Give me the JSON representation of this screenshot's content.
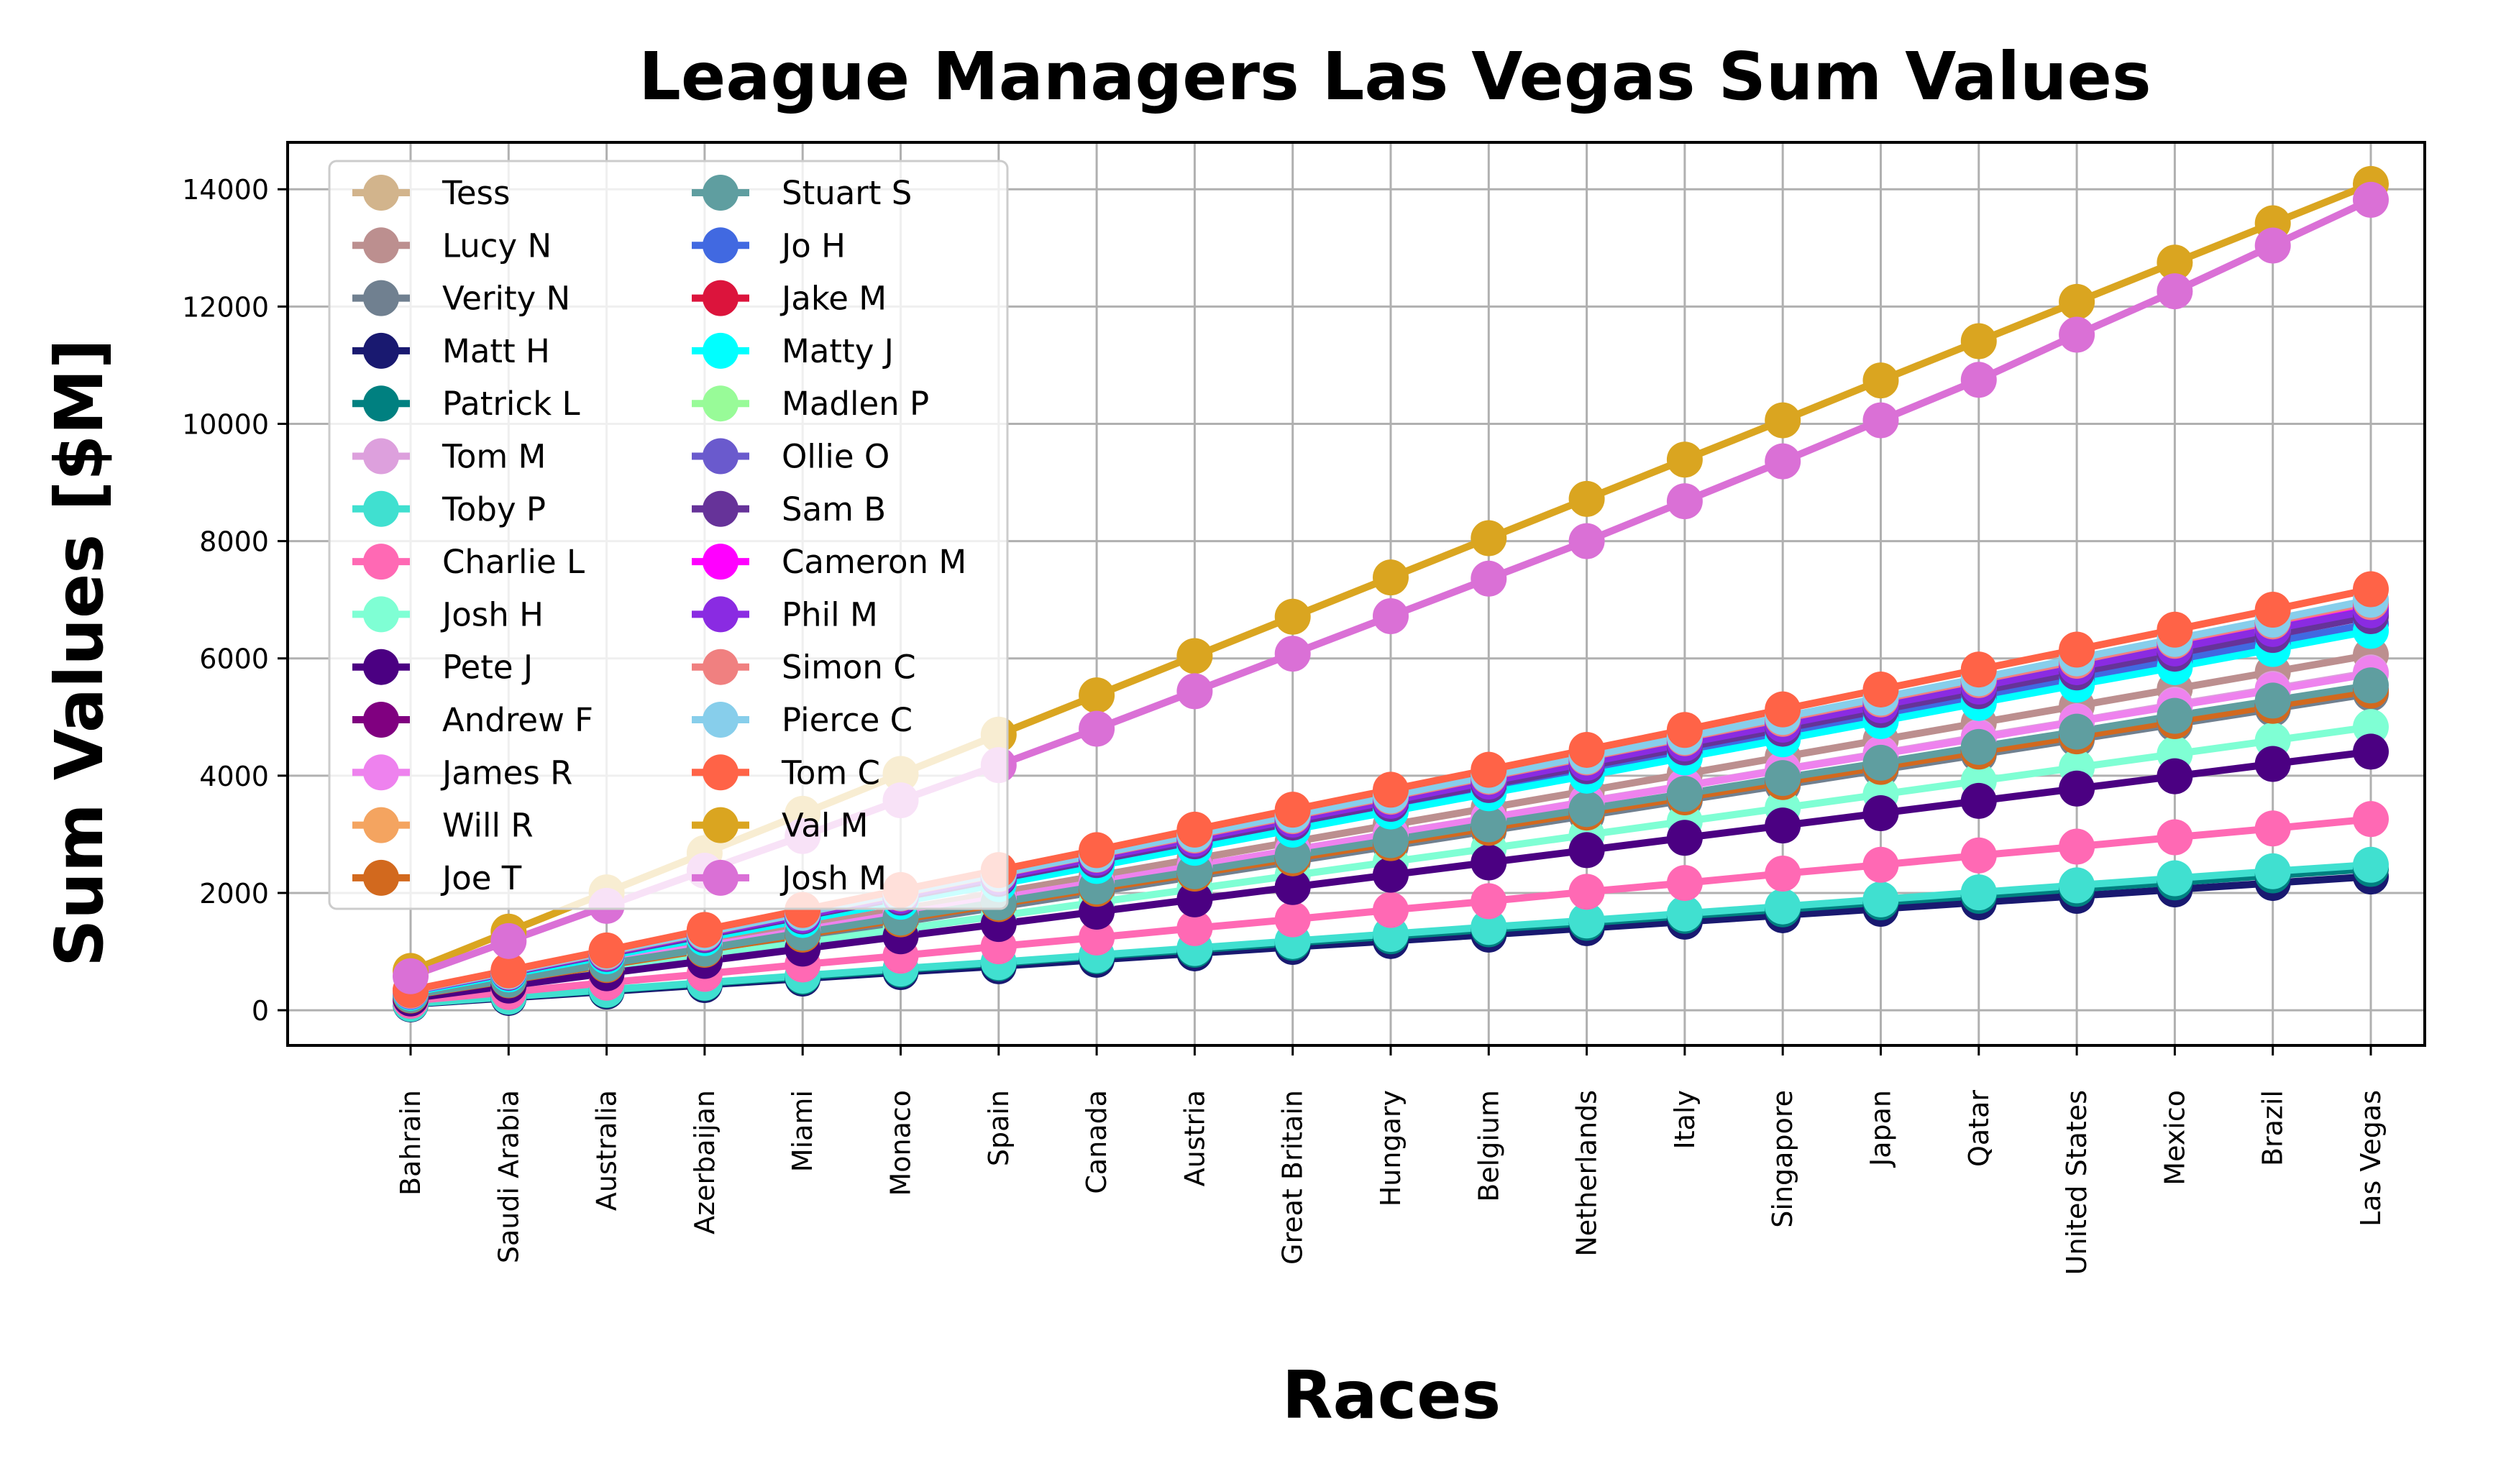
{
  "chart_data": {
    "type": "line",
    "title": "League Managers Las Vegas Sum Values",
    "xlabel": "Races",
    "ylabel": "Sum Values [$M]",
    "ylim": [
      -600,
      14800
    ],
    "yticks": [
      0,
      2000,
      4000,
      6000,
      8000,
      10000,
      12000,
      14000
    ],
    "grid": true,
    "legend_location": "upper-left",
    "legend_columns": 2,
    "categories": [
      "Bahrain",
      "Saudi Arabia",
      "Australia",
      "Azerbaijan",
      "Miami",
      "Monaco",
      "Spain",
      "Canada",
      "Austria",
      "Great Britain",
      "Hungary",
      "Belgium",
      "Netherlands",
      "Italy",
      "Singapore",
      "Japan",
      "Qatar",
      "United States",
      "Mexico",
      "Brazil",
      "Las Vegas"
    ],
    "series": [
      {
        "name": "Tess",
        "color": "#d2b48c",
        "values": [
          310,
          620,
          930,
          1240,
          1560,
          1880,
          2200,
          2520,
          2840,
          3160,
          3480,
          3800,
          4130,
          4460,
          4790,
          5120,
          5450,
          5780,
          6110,
          6440,
          6780
        ]
      },
      {
        "name": "Lucy N",
        "color": "#bc8f8f",
        "values": [
          290,
          570,
          860,
          1140,
          1430,
          1720,
          2000,
          2290,
          2580,
          2870,
          3160,
          3450,
          3740,
          4030,
          4320,
          4610,
          4900,
          5190,
          5480,
          5770,
          6060
        ]
      },
      {
        "name": "Verity N",
        "color": "#708090",
        "values": [
          250,
          500,
          750,
          1000,
          1250,
          1500,
          1760,
          2020,
          2280,
          2540,
          2800,
          3060,
          3320,
          3580,
          3840,
          4100,
          4360,
          4620,
          4880,
          5140,
          5400
        ]
      },
      {
        "name": "Matt H",
        "color": "#191970",
        "values": [
          100,
          210,
          320,
          430,
          540,
          650,
          750,
          860,
          970,
          1080,
          1180,
          1290,
          1400,
          1510,
          1620,
          1730,
          1840,
          1950,
          2060,
          2170,
          2280
        ]
      },
      {
        "name": "Patrick L",
        "color": "#008080",
        "values": [
          110,
          230,
          340,
          460,
          570,
          690,
          800,
          920,
          1030,
          1150,
          1260,
          1380,
          1490,
          1610,
          1720,
          1840,
          1950,
          2070,
          2180,
          2300,
          2410
        ]
      },
      {
        "name": "Tom M",
        "color": "#dda0dd",
        "values": [
          270,
          540,
          820,
          1090,
          1360,
          1640,
          1910,
          2180,
          2460,
          2730,
          3010,
          3280,
          3560,
          3830,
          4110,
          4380,
          4660,
          4930,
          5210,
          5480,
          5760
        ]
      },
      {
        "name": "Toby P",
        "color": "#40e0d0",
        "values": [
          110,
          230,
          350,
          470,
          590,
          710,
          820,
          940,
          1060,
          1180,
          1300,
          1420,
          1530,
          1650,
          1770,
          1890,
          2010,
          2130,
          2250,
          2370,
          2480
        ]
      },
      {
        "name": "Charlie L",
        "color": "#ff69b4",
        "values": [
          160,
          310,
          470,
          620,
          780,
          930,
          1090,
          1240,
          1400,
          1550,
          1710,
          1860,
          2020,
          2170,
          2330,
          2480,
          2640,
          2790,
          2950,
          3100,
          3260
        ]
      },
      {
        "name": "Josh H",
        "color": "#7fffd4",
        "values": [
          230,
          460,
          690,
          920,
          1150,
          1380,
          1610,
          1840,
          2070,
          2300,
          2530,
          2760,
          2990,
          3220,
          3450,
          3680,
          3910,
          4140,
          4370,
          4600,
          4830
        ]
      },
      {
        "name": "Pete J",
        "color": "#4b0082",
        "values": [
          200,
          420,
          630,
          840,
          1050,
          1260,
          1470,
          1680,
          1890,
          2100,
          2310,
          2520,
          2730,
          2940,
          3150,
          3360,
          3570,
          3780,
          3990,
          4200,
          4410
        ]
      },
      {
        "name": "Andrew F",
        "color": "#800080",
        "values": [
          260,
          520,
          780,
          1040,
          1300,
          1560,
          1820,
          2080,
          2340,
          2600,
          2860,
          3120,
          3380,
          3640,
          3900,
          4160,
          4420,
          4680,
          4940,
          5200,
          5460
        ]
      },
      {
        "name": "James R",
        "color": "#ee82ee",
        "values": [
          270,
          540,
          820,
          1090,
          1360,
          1640,
          1910,
          2180,
          2460,
          2730,
          3000,
          3280,
          3550,
          3820,
          4100,
          4370,
          4640,
          4920,
          5190,
          5460,
          5740
        ]
      },
      {
        "name": "Will R",
        "color": "#f4a460",
        "values": [
          330,
          660,
          990,
          1320,
          1650,
          1980,
          2310,
          2640,
          2970,
          3300,
          3630,
          3960,
          4290,
          4620,
          4950,
          5280,
          5610,
          5940,
          6270,
          6600,
          6930
        ]
      },
      {
        "name": "Joe T",
        "color": "#d2691e",
        "values": [
          250,
          510,
          770,
          1030,
          1290,
          1550,
          1810,
          2070,
          2330,
          2590,
          2850,
          3110,
          3370,
          3630,
          3890,
          4150,
          4410,
          4670,
          4930,
          5190,
          5450
        ]
      },
      {
        "name": "Stuart S",
        "color": "#5f9ea0",
        "values": [
          260,
          520,
          790,
          1050,
          1320,
          1580,
          1840,
          2110,
          2370,
          2640,
          2900,
          3170,
          3430,
          3690,
          3960,
          4220,
          4490,
          4750,
          5020,
          5280,
          5540
        ]
      },
      {
        "name": "Jo H",
        "color": "#4169e1",
        "values": [
          310,
          620,
          940,
          1250,
          1570,
          1880,
          2190,
          2510,
          2820,
          3140,
          3450,
          3760,
          4080,
          4390,
          4710,
          5020,
          5330,
          5650,
          5960,
          6280,
          6590
        ]
      },
      {
        "name": "Jake M",
        "color": "#dc143c",
        "values": [
          330,
          660,
          990,
          1320,
          1650,
          1980,
          2310,
          2640,
          2970,
          3300,
          3630,
          3960,
          4290,
          4620,
          4950,
          5280,
          5610,
          5940,
          6270,
          6600,
          6930
        ]
      },
      {
        "name": "Matty J",
        "color": "#00ffff",
        "values": [
          300,
          610,
          920,
          1230,
          1540,
          1850,
          2150,
          2460,
          2770,
          3080,
          3390,
          3700,
          4000,
          4310,
          4620,
          4930,
          5240,
          5550,
          5850,
          6160,
          6470
        ]
      },
      {
        "name": "Madlen P",
        "color": "#98fb98",
        "values": [
          320,
          650,
          970,
          1300,
          1620,
          1950,
          2270,
          2600,
          2920,
          3250,
          3570,
          3900,
          4220,
          4550,
          4870,
          5200,
          5520,
          5850,
          6170,
          6500,
          6820
        ]
      },
      {
        "name": "Ollie O",
        "color": "#6a5acd",
        "values": [
          320,
          640,
          960,
          1290,
          1610,
          1930,
          2250,
          2580,
          2900,
          3220,
          3540,
          3870,
          4190,
          4510,
          4830,
          5160,
          5480,
          5800,
          6120,
          6450,
          6770
        ]
      },
      {
        "name": "Sam B",
        "color": "#663399",
        "values": [
          320,
          640,
          960,
          1280,
          1600,
          1920,
          2240,
          2560,
          2880,
          3200,
          3520,
          3840,
          4160,
          4480,
          4800,
          5120,
          5440,
          5760,
          6080,
          6400,
          6720
        ]
      },
      {
        "name": "Cameron M",
        "color": "#ff00ff",
        "values": [
          320,
          650,
          980,
          1310,
          1630,
          1960,
          2290,
          2620,
          2940,
          3270,
          3600,
          3930,
          4250,
          4580,
          4910,
          5240,
          5560,
          5890,
          6220,
          6550,
          6870
        ]
      },
      {
        "name": "Phil M",
        "color": "#8a2be2",
        "values": [
          320,
          650,
          970,
          1300,
          1620,
          1950,
          2270,
          2600,
          2920,
          3250,
          3570,
          3900,
          4220,
          4550,
          4870,
          5200,
          5520,
          5850,
          6170,
          6500,
          6820
        ]
      },
      {
        "name": "Simon C",
        "color": "#f08080",
        "values": [
          330,
          660,
          990,
          1320,
          1660,
          1990,
          2320,
          2650,
          2980,
          3310,
          3640,
          3980,
          4310,
          4640,
          4970,
          5300,
          5630,
          5960,
          6300,
          6630,
          6960
        ]
      },
      {
        "name": "Pierce C",
        "color": "#87ceeb",
        "values": [
          330,
          660,
          1000,
          1330,
          1660,
          2000,
          2330,
          2660,
          3000,
          3330,
          3660,
          4000,
          4330,
          4660,
          5000,
          5330,
          5660,
          6000,
          6330,
          6660,
          7000
        ]
      },
      {
        "name": "Tom C",
        "color": "#ff6347",
        "values": [
          340,
          680,
          1020,
          1370,
          1710,
          2050,
          2390,
          2730,
          3080,
          3420,
          3760,
          4100,
          4440,
          4780,
          5130,
          5470,
          5810,
          6150,
          6490,
          6830,
          7180
        ]
      },
      {
        "name": "Val M",
        "color": "#daa520",
        "values": [
          670,
          1340,
          2010,
          2680,
          3350,
          4030,
          4700,
          5370,
          6040,
          6710,
          7380,
          8050,
          8720,
          9390,
          10060,
          10740,
          11410,
          12080,
          12750,
          13420,
          14090
        ]
      },
      {
        "name": "Josh M",
        "color": "#da70d6",
        "values": [
          580,
          1180,
          1780,
          2380,
          2970,
          3580,
          4180,
          4800,
          5440,
          6080,
          6720,
          7360,
          8000,
          8680,
          9360,
          10060,
          10750,
          11520,
          12260,
          13040,
          13820
        ]
      }
    ]
  }
}
